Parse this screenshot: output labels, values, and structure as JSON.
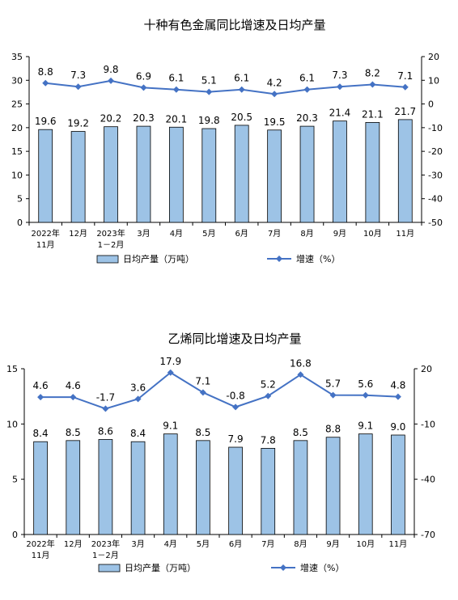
{
  "chart_data": [
    {
      "type": "bar",
      "title": "十种有色金属同比增速及日均产量",
      "categories": [
        [
          "2022年",
          "11月"
        ],
        [
          "12月"
        ],
        [
          "2023年",
          "1－2月"
        ],
        [
          "3月"
        ],
        [
          "4月"
        ],
        [
          "5月"
        ],
        [
          "6月"
        ],
        [
          "7月"
        ],
        [
          "8月"
        ],
        [
          "9月"
        ],
        [
          "10月"
        ],
        [
          "11月"
        ]
      ],
      "series": [
        {
          "name": "日均产量（万吨）",
          "type": "bar",
          "axis": "left",
          "color": "#9dc3e6",
          "values": [
            19.6,
            19.2,
            20.2,
            20.3,
            20.1,
            19.8,
            20.5,
            19.5,
            20.3,
            21.4,
            21.1,
            21.7
          ]
        },
        {
          "name": "增速（%）",
          "type": "line",
          "axis": "right",
          "color": "#4472c4",
          "values": [
            8.8,
            7.3,
            9.8,
            6.9,
            6.1,
            5.1,
            6.1,
            4.2,
            6.1,
            7.3,
            8.2,
            7.1
          ]
        }
      ],
      "left_axis": {
        "ylim": [
          0,
          35
        ],
        "ticks": [
          0,
          5,
          10,
          15,
          20,
          25,
          30,
          35
        ]
      },
      "right_axis": {
        "ylim": [
          -50,
          20
        ],
        "ticks": [
          -50,
          -40,
          -30,
          -20,
          -10,
          0,
          10,
          20
        ]
      },
      "legend": "bottom"
    },
    {
      "type": "bar",
      "title": "乙烯同比增速及日均产量",
      "categories": [
        [
          "2022年",
          "11月"
        ],
        [
          "12月"
        ],
        [
          "2023年",
          "1－2月"
        ],
        [
          "3月"
        ],
        [
          "4月"
        ],
        [
          "5月"
        ],
        [
          "6月"
        ],
        [
          "7月"
        ],
        [
          "8月"
        ],
        [
          "9月"
        ],
        [
          "10月"
        ],
        [
          "11月"
        ]
      ],
      "series": [
        {
          "name": "日均产量（万吨）",
          "type": "bar",
          "axis": "left",
          "color": "#9dc3e6",
          "values": [
            8.4,
            8.5,
            8.6,
            8.4,
            9.1,
            8.5,
            7.9,
            7.8,
            8.5,
            8.8,
            9.1,
            9.0
          ]
        },
        {
          "name": "增速（%）",
          "type": "line",
          "axis": "right",
          "color": "#4472c4",
          "values": [
            4.6,
            4.6,
            -1.7,
            3.6,
            17.9,
            7.1,
            -0.8,
            5.2,
            16.8,
            5.7,
            5.6,
            4.8
          ]
        }
      ],
      "left_axis": {
        "ylim": [
          0,
          15
        ],
        "ticks": [
          0,
          5,
          10,
          15
        ]
      },
      "right_axis": {
        "ylim": [
          -70,
          20
        ],
        "ticks": [
          -70,
          -40,
          -10,
          20
        ]
      },
      "legend": "bottom"
    }
  ]
}
